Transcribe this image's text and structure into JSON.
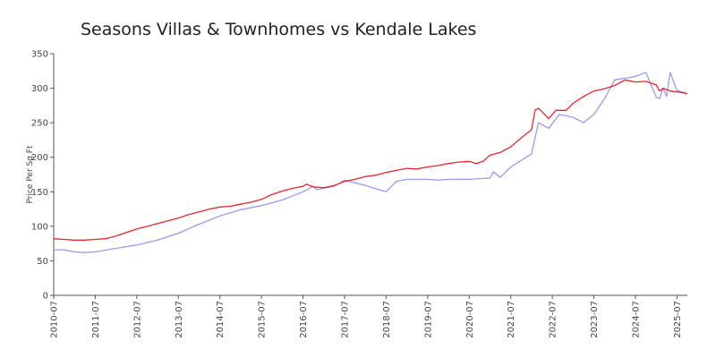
{
  "chart_data": {
    "type": "line",
    "title": "Seasons Villas & Townhomes vs Kendale Lakes",
    "xlabel": "",
    "ylabel": "Price Per Sq Ft",
    "ylim": [
      0,
      350
    ],
    "yticks": [
      0,
      50,
      100,
      150,
      200,
      250,
      300,
      350
    ],
    "xlim": [
      "2010-07",
      "2025-10"
    ],
    "xticks": [
      "2010-07",
      "2011-07",
      "2012-07",
      "2013-07",
      "2014-07",
      "2015-07",
      "2016-07",
      "2017-07",
      "2018-07",
      "2019-07",
      "2020-07",
      "2021-07",
      "2022-07",
      "2023-07",
      "2024-07",
      "2025-07"
    ],
    "grid": false,
    "legend": "none",
    "series": [
      {
        "color": "#e8262a",
        "points": [
          [
            "2010-07",
            82
          ],
          [
            "2010-10",
            81
          ],
          [
            "2011-01",
            80
          ],
          [
            "2011-04",
            80
          ],
          [
            "2011-07",
            81
          ],
          [
            "2011-10",
            82
          ],
          [
            "2012-01",
            86
          ],
          [
            "2012-04",
            91
          ],
          [
            "2012-07",
            96
          ],
          [
            "2012-10",
            100
          ],
          [
            "2013-01",
            104
          ],
          [
            "2013-04",
            108
          ],
          [
            "2013-07",
            112
          ],
          [
            "2013-10",
            117
          ],
          [
            "2014-01",
            121
          ],
          [
            "2014-04",
            125
          ],
          [
            "2014-07",
            128
          ],
          [
            "2014-10",
            129
          ],
          [
            "2015-01",
            132
          ],
          [
            "2015-04",
            135
          ],
          [
            "2015-07",
            139
          ],
          [
            "2015-10",
            146
          ],
          [
            "2016-01",
            151
          ],
          [
            "2016-04",
            155
          ],
          [
            "2016-07",
            158
          ],
          [
            "2016-08",
            161
          ],
          [
            "2016-10",
            157
          ],
          [
            "2017-01",
            156
          ],
          [
            "2017-04",
            159
          ],
          [
            "2017-07",
            165
          ],
          [
            "2017-10",
            168
          ],
          [
            "2018-01",
            172
          ],
          [
            "2018-04",
            174
          ],
          [
            "2018-07",
            178
          ],
          [
            "2018-10",
            181
          ],
          [
            "2019-01",
            184
          ],
          [
            "2019-04",
            183
          ],
          [
            "2019-07",
            186
          ],
          [
            "2019-10",
            188
          ],
          [
            "2020-01",
            191
          ],
          [
            "2020-04",
            193
          ],
          [
            "2020-07",
            194
          ],
          [
            "2020-09",
            191
          ],
          [
            "2020-11",
            194
          ],
          [
            "2021-01",
            203
          ],
          [
            "2021-04",
            207
          ],
          [
            "2021-07",
            215
          ],
          [
            "2021-10",
            228
          ],
          [
            "2022-01",
            240
          ],
          [
            "2022-02",
            268
          ],
          [
            "2022-03",
            271
          ],
          [
            "2022-04",
            266
          ],
          [
            "2022-06",
            256
          ],
          [
            "2022-08",
            268
          ],
          [
            "2022-11",
            268
          ],
          [
            "2023-01",
            278
          ],
          [
            "2023-04",
            288
          ],
          [
            "2023-07",
            296
          ],
          [
            "2023-10",
            299
          ],
          [
            "2024-01",
            304
          ],
          [
            "2024-04",
            312
          ],
          [
            "2024-07",
            309
          ],
          [
            "2024-10",
            310
          ],
          [
            "2025-01",
            305
          ],
          [
            "2025-02",
            296
          ],
          [
            "2025-03",
            300
          ],
          [
            "2025-05",
            296
          ],
          [
            "2025-08",
            294
          ],
          [
            "2025-10",
            292
          ]
        ]
      },
      {
        "color": "#9a9af0",
        "points": [
          [
            "2010-07",
            66
          ],
          [
            "2010-10",
            66
          ],
          [
            "2011-01",
            63
          ],
          [
            "2011-04",
            62
          ],
          [
            "2011-07",
            63
          ],
          [
            "2012-01",
            68
          ],
          [
            "2012-07",
            73
          ],
          [
            "2013-01",
            80
          ],
          [
            "2013-07",
            90
          ],
          [
            "2014-01",
            103
          ],
          [
            "2014-07",
            115
          ],
          [
            "2015-01",
            124
          ],
          [
            "2015-07",
            130
          ],
          [
            "2016-01",
            138
          ],
          [
            "2016-07",
            150
          ],
          [
            "2016-10",
            158
          ],
          [
            "2016-11",
            153
          ],
          [
            "2017-01",
            155
          ],
          [
            "2017-04",
            158
          ],
          [
            "2017-07",
            167
          ],
          [
            "2018-01",
            159
          ],
          [
            "2018-07",
            150
          ],
          [
            "2018-10",
            165
          ],
          [
            "2019-01",
            168
          ],
          [
            "2019-07",
            168
          ],
          [
            "2019-10",
            167
          ],
          [
            "2020-01",
            168
          ],
          [
            "2020-07",
            168
          ],
          [
            "2020-10",
            169
          ],
          [
            "2021-01",
            170
          ],
          [
            "2021-02",
            179
          ],
          [
            "2021-04",
            171
          ],
          [
            "2021-07",
            186
          ],
          [
            "2022-01",
            205
          ],
          [
            "2022-03",
            250
          ],
          [
            "2022-06",
            242
          ],
          [
            "2022-09",
            262
          ],
          [
            "2023-01",
            258
          ],
          [
            "2023-04",
            250
          ],
          [
            "2023-07",
            262
          ],
          [
            "2023-10",
            284
          ],
          [
            "2024-01",
            312
          ],
          [
            "2024-07",
            317
          ],
          [
            "2024-10",
            323
          ],
          [
            "2025-01",
            287
          ],
          [
            "2025-02",
            285
          ],
          [
            "2025-03",
            300
          ],
          [
            "2025-04",
            288
          ],
          [
            "2025-05",
            323
          ],
          [
            "2025-07",
            297
          ],
          [
            "2025-10",
            292
          ]
        ]
      }
    ]
  }
}
